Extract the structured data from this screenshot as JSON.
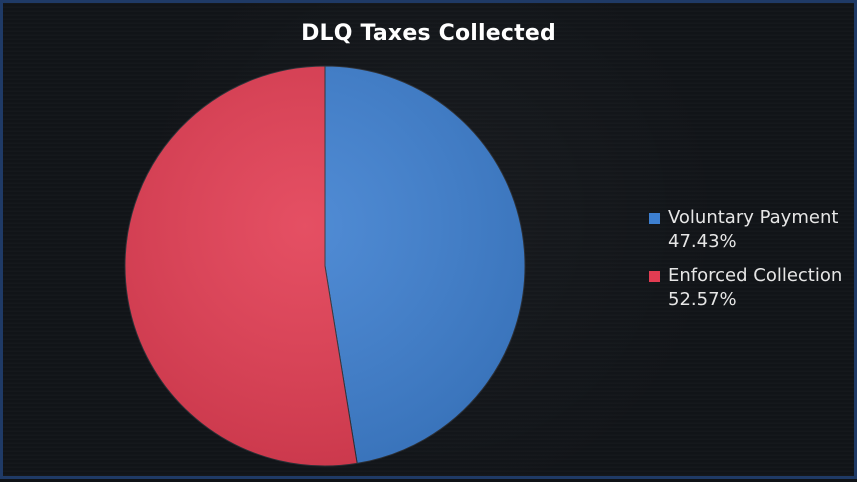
{
  "chart_data": {
    "type": "pie",
    "title": "DLQ Taxes Collected",
    "series": [
      {
        "name": "Voluntary Payment",
        "value": 47.43,
        "label": "47.43%",
        "color": "#3d7fd0"
      },
      {
        "name": "Enforced Collection",
        "value": 52.57,
        "label": "52.57%",
        "color": "#e23c52"
      }
    ],
    "legend_position": "right"
  }
}
